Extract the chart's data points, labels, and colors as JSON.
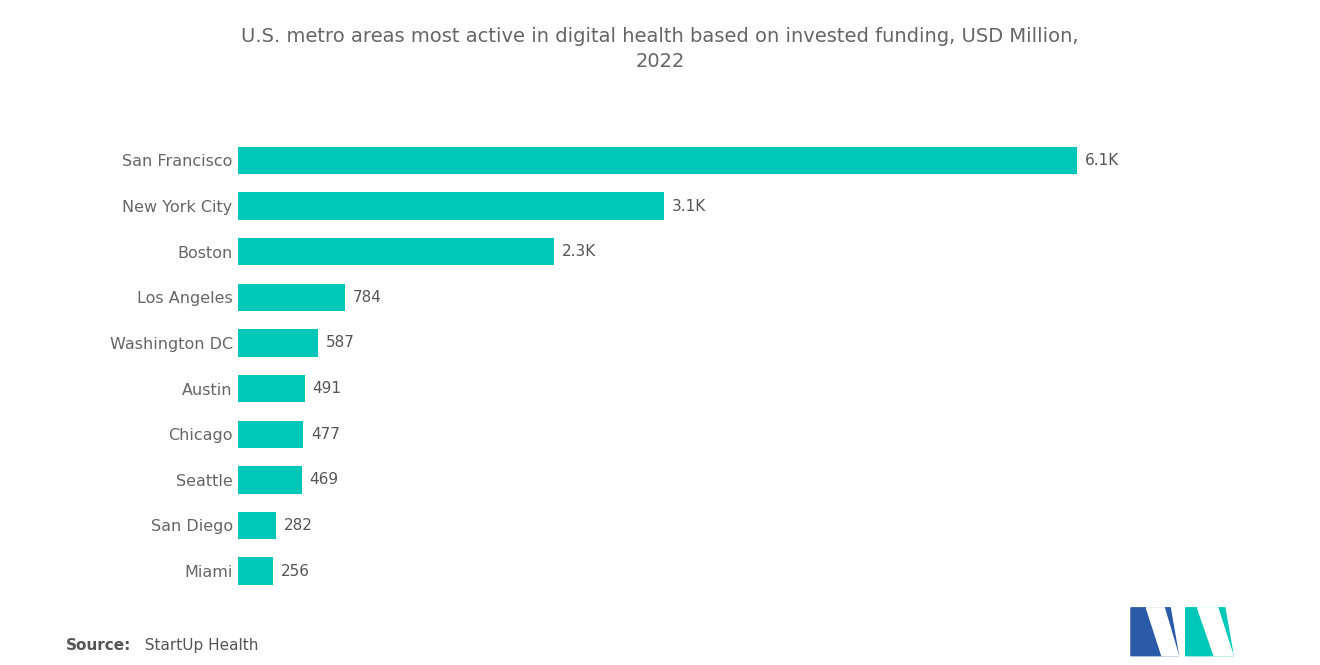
{
  "title_line1": "U.S. metro areas most active in digital health based on invested funding, USD Million,",
  "title_line2": "2022",
  "categories": [
    "San Francisco",
    "New York City",
    "Boston",
    "Los Angeles",
    "Washington DC",
    "Austin",
    "Chicago",
    "Seattle",
    "San Diego",
    "Miami"
  ],
  "values": [
    6100,
    3100,
    2300,
    784,
    587,
    491,
    477,
    469,
    282,
    256
  ],
  "labels": [
    "6.1K",
    "3.1K",
    "2.3K",
    "784",
    "587",
    "491",
    "477",
    "469",
    "282",
    "256"
  ],
  "bar_color": "#00C8B8",
  "background_color": "#ffffff",
  "title_color": "#666666",
  "label_color": "#555555",
  "ytick_color": "#666666",
  "source_bold": "Source:",
  "source_normal": "  StartUp Health",
  "title_fontsize": 14,
  "label_fontsize": 11,
  "ytick_fontsize": 11.5,
  "source_fontsize": 11,
  "logo_color_left": "#2B5BA8",
  "logo_color_right": "#00C8B8"
}
